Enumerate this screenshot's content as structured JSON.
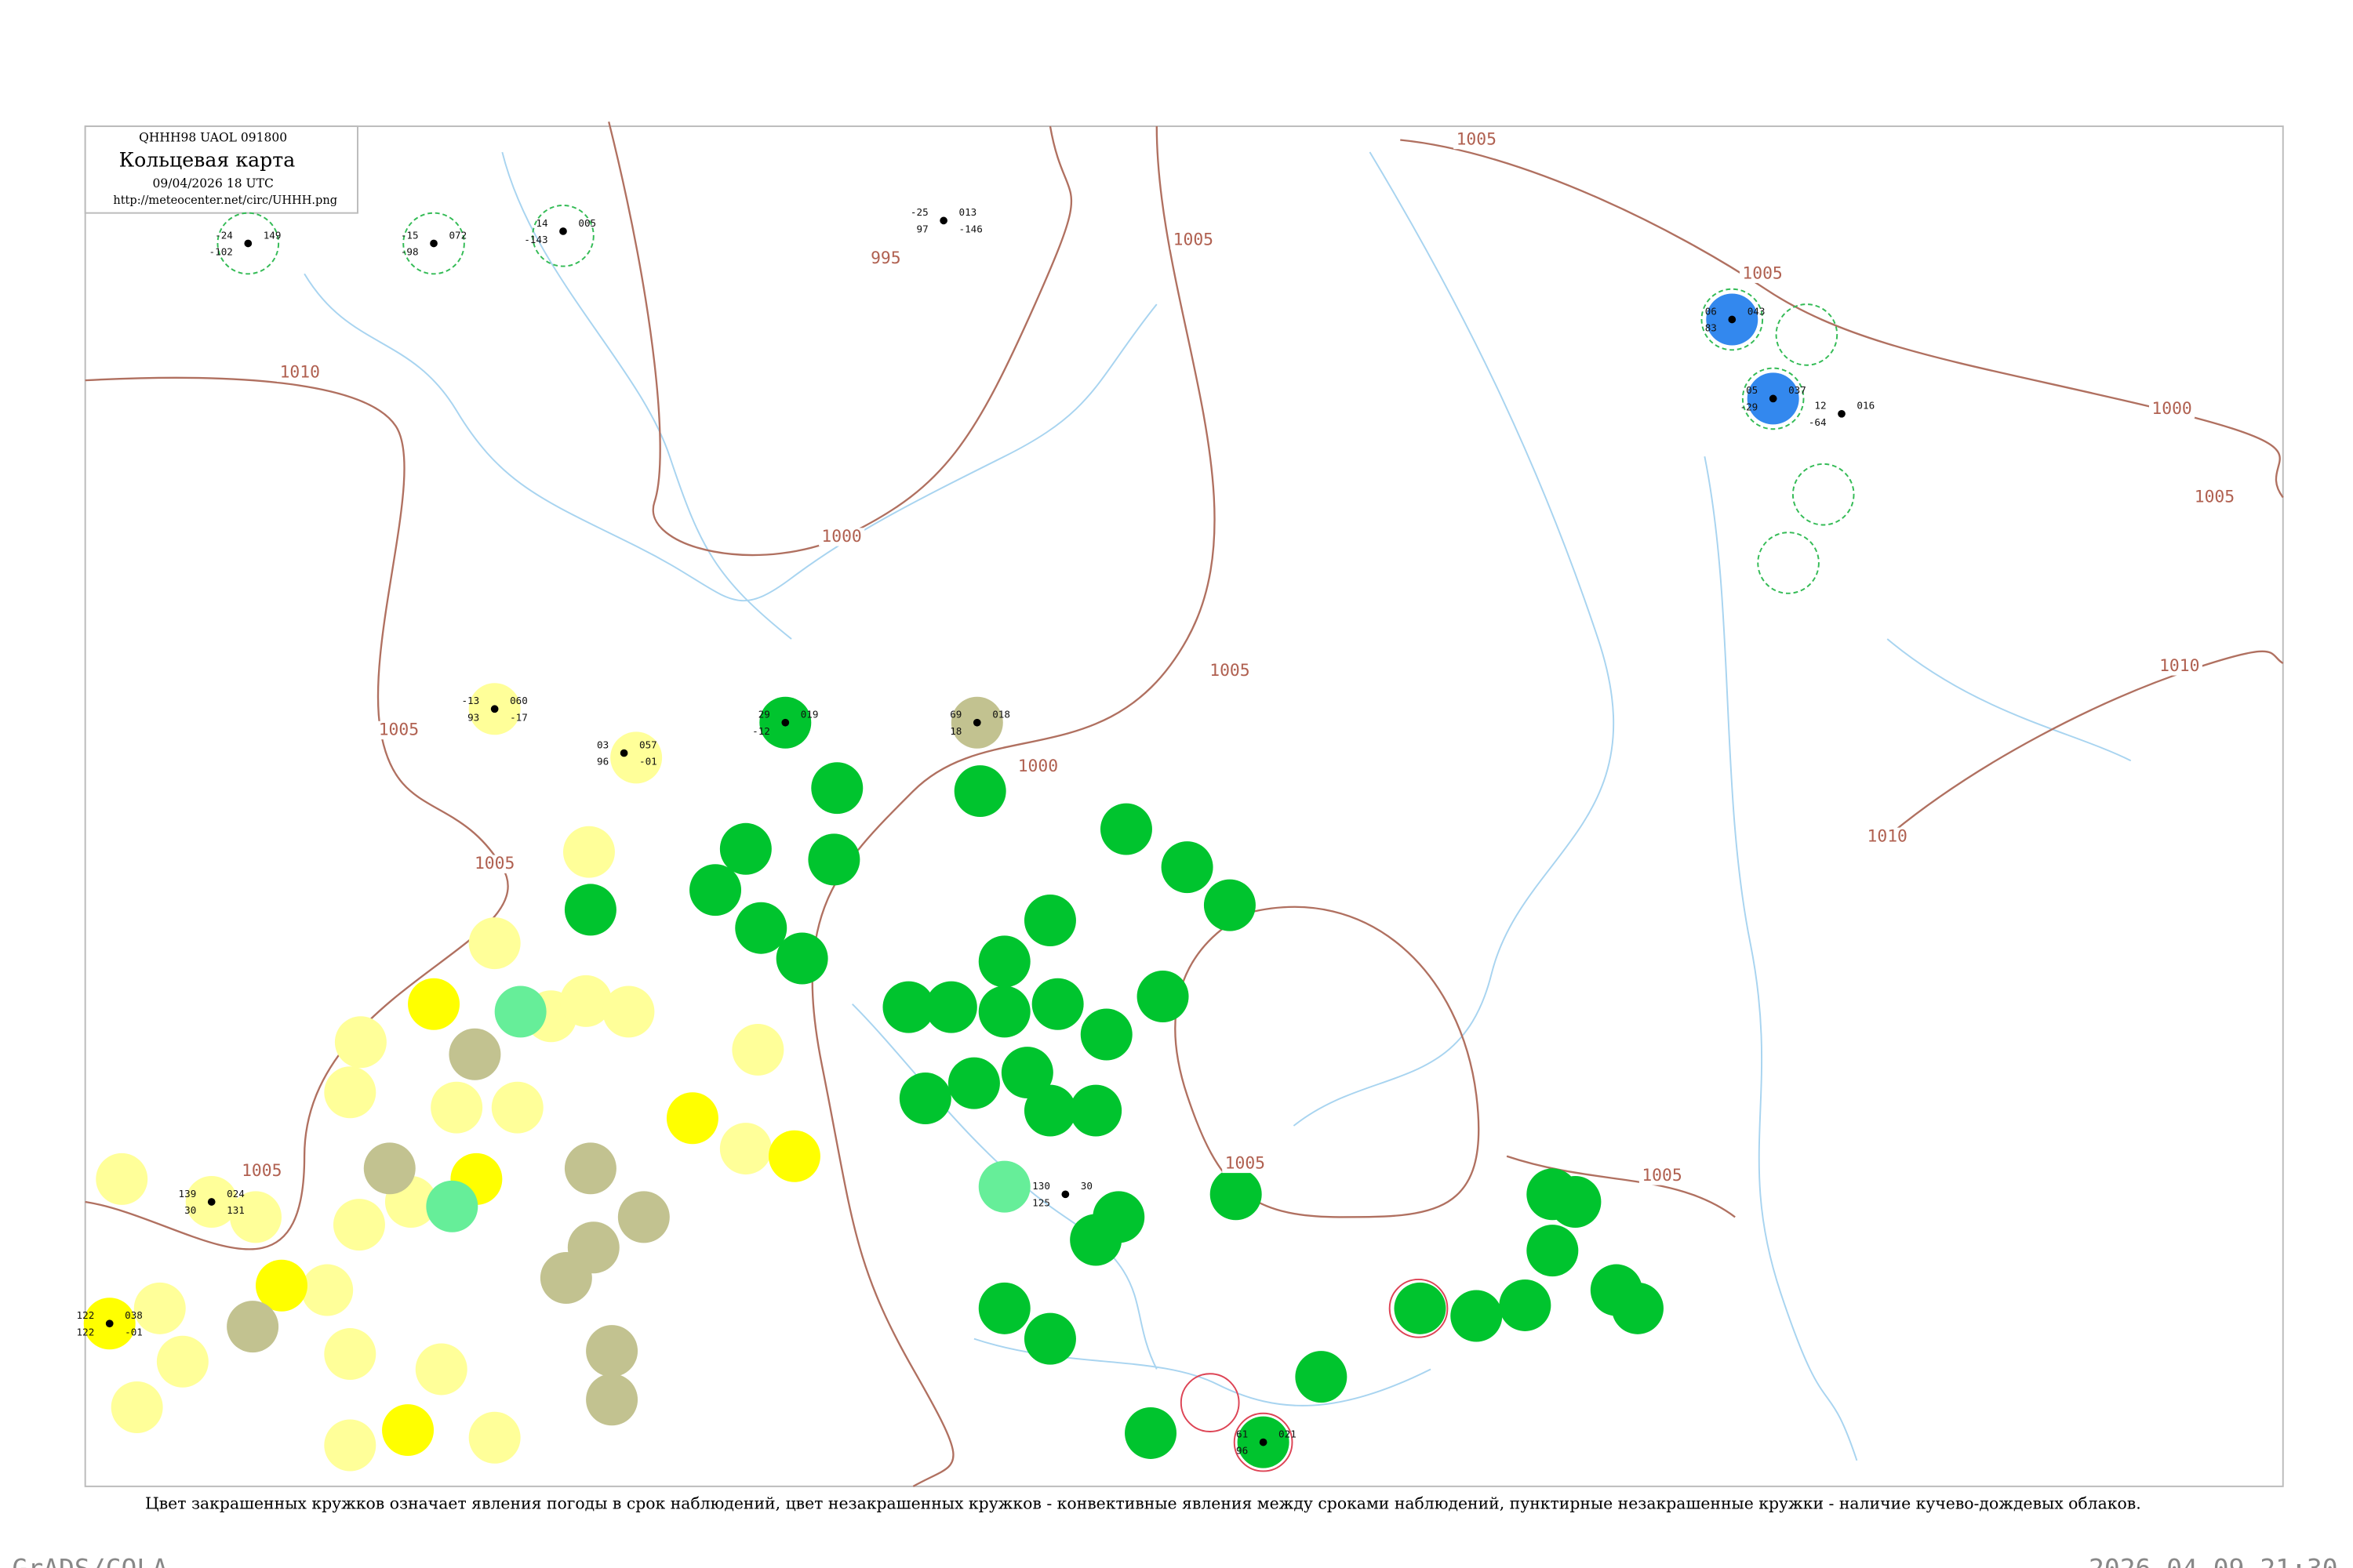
{
  "header": {
    "code": "QHHH98  UAOL  091800",
    "title": "Кольцевая карта",
    "time": "09/04/2026 18 UTC",
    "url": "http://meteocenter.net/circ/UHHH.png"
  },
  "isobar_labels": [
    "1010",
    "1005",
    "1005",
    "1005",
    "995",
    "1000",
    "1000",
    "1005",
    "1005",
    "1005",
    "1000",
    "1005",
    "1010",
    "1010",
    "1005",
    "1005",
    "1005"
  ],
  "stations": [
    {
      "values": [
        "-24",
        "149",
        "-102"
      ]
    },
    {
      "values": [
        "-15",
        "072",
        "-98"
      ]
    },
    {
      "values": [
        "14",
        "005",
        "-143"
      ]
    },
    {
      "values": [
        "-25",
        "013",
        "97",
        "-146"
      ]
    },
    {
      "values": [
        "06",
        "043",
        "83"
      ]
    },
    {
      "values": [
        "05",
        "037",
        "-29"
      ]
    },
    {
      "values": [
        "29",
        "019",
        "-12"
      ]
    },
    {
      "values": [
        "69",
        "018",
        "18"
      ]
    },
    {
      "values": [
        "-13",
        "060",
        "93",
        "-17"
      ]
    },
    {
      "values": [
        "139",
        "024",
        "30",
        "131"
      ]
    },
    {
      "values": [
        "122",
        "038",
        "122",
        "-01"
      ]
    },
    {
      "values": [
        "61",
        "021",
        "96"
      ]
    },
    {
      "values": [
        "12",
        "016",
        "-64"
      ]
    },
    {
      "values": [
        "130",
        "30",
        "125"
      ]
    },
    {
      "values": [
        "03",
        "057",
        "96",
        "-01"
      ]
    }
  ],
  "caption": "Цвет закрашенных кружков означает явления погоды в срок наблюдений, цвет незакрашенных кружков - конвективные явления между сроками наблюдений, пунктирные незакрашенные кружки - наличие кучево-дождевых облаков.",
  "footer": {
    "left": "GrADS/COLA",
    "right": "2026-04-09-21:30"
  }
}
